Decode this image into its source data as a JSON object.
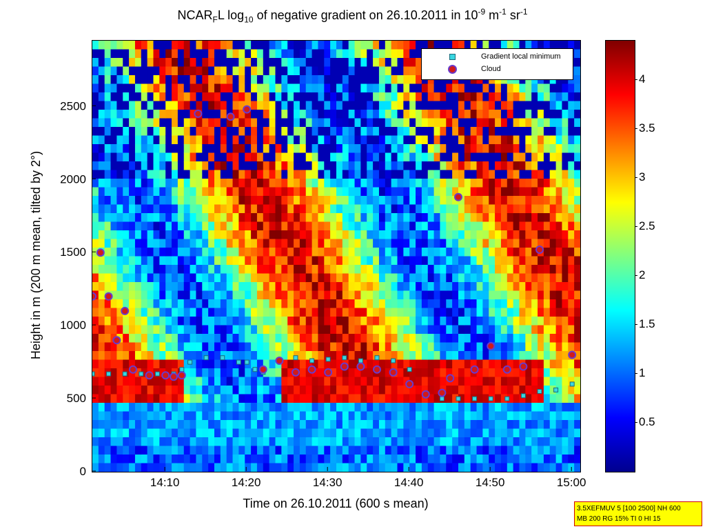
{
  "title": {
    "prefix": "NCAR",
    "sub1": "F",
    "mid": "L log",
    "sub2": "10",
    "rest": " of negative gradient on 26.10.2011 in 10",
    "sup1": "-9",
    "unit1": " m",
    "sup2": "-1",
    "unit2": " sr",
    "sup3": "-1"
  },
  "xlabel": "Time on 26.10.2011 (600 s mean)",
  "ylabel": "Height in m (200 m mean, tilted by 2°)",
  "legend": {
    "item1": "Gradient local minimum",
    "item2": "Cloud"
  },
  "info": {
    "line1": "3.5XEFMUV 5 [100 2500] NH 600",
    "line2": "MB 200 RG 15% TI 0 HI 15"
  },
  "colors": {
    "cloud_fill": "#d11a1a",
    "cloud_edge": "#6a3acb",
    "gradient_fill": "#39d6e0",
    "background_field": "#0a0a8c"
  },
  "chart_data": {
    "type": "heatmap",
    "xlim": [
      "14:01",
      "15:01"
    ],
    "ylim": [
      0,
      2950
    ],
    "x_ticks": [
      "14:10",
      "14:20",
      "14:30",
      "14:40",
      "14:50",
      "15:00"
    ],
    "y_ticks": [
      0,
      500,
      1000,
      1500,
      2000,
      2500
    ],
    "colorbar": {
      "range": [
        0,
        4.4
      ],
      "ticks": [
        "0.5",
        "1",
        "1.5",
        "2",
        "2.5",
        "3",
        "3.5",
        "4"
      ]
    },
    "series": [
      {
        "name": "Gradient local minimum",
        "x": [
          "14:01",
          "14:03",
          "14:05",
          "14:07",
          "14:09",
          "14:11",
          "14:12",
          "14:13",
          "14:15",
          "14:17",
          "14:19",
          "14:20",
          "14:21",
          "14:22",
          "14:24",
          "14:26",
          "14:28",
          "14:30",
          "14:32",
          "14:34",
          "14:36",
          "14:38",
          "14:40",
          "14:42",
          "14:44",
          "14:46",
          "14:48",
          "14:50",
          "14:52",
          "14:54",
          "14:56",
          "14:58",
          "15:00"
        ],
        "y": [
          670,
          670,
          670,
          670,
          670,
          670,
          700,
          750,
          780,
          780,
          750,
          750,
          700,
          680,
          760,
          780,
          760,
          770,
          780,
          760,
          780,
          760,
          700,
          520,
          500,
          500,
          500,
          500,
          500,
          520,
          550,
          560,
          600
        ]
      },
      {
        "name": "Cloud",
        "x": [
          "14:01",
          "14:02",
          "14:03",
          "14:04",
          "14:05",
          "14:06",
          "14:08",
          "14:10",
          "14:11",
          "14:12",
          "14:14",
          "14:18",
          "14:20",
          "14:22",
          "14:24",
          "14:26",
          "14:28",
          "14:30",
          "14:32",
          "14:34",
          "14:36",
          "14:38",
          "14:40",
          "14:42",
          "14:44",
          "14:45",
          "14:46",
          "14:48",
          "14:50",
          "14:52",
          "14:54",
          "14:56",
          "15:00"
        ],
        "y": [
          1200,
          1500,
          1200,
          900,
          1100,
          700,
          660,
          660,
          650,
          660,
          2450,
          2430,
          2480,
          700,
          760,
          680,
          700,
          680,
          720,
          720,
          700,
          680,
          600,
          530,
          540,
          640,
          1880,
          700,
          860,
          700,
          720,
          1520,
          800
        ]
      }
    ]
  }
}
